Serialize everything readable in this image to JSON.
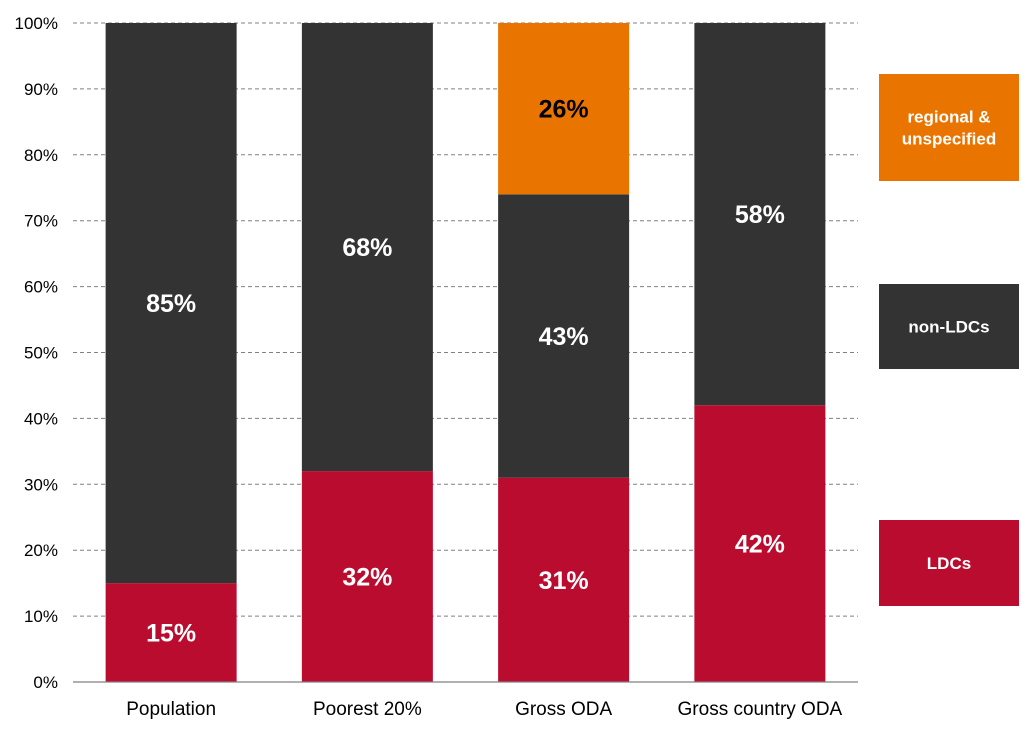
{
  "chart_data": {
    "type": "bar",
    "stacked": true,
    "categories": [
      "Population",
      "Poorest 20%",
      "Gross ODA",
      "Gross country ODA"
    ],
    "series": [
      {
        "name": "LDCs",
        "color": "#ba0c2f",
        "values": [
          15,
          32,
          31,
          42
        ],
        "labels": [
          "15%",
          "32%",
          "31%",
          "42%"
        ],
        "label_color": "#ffffff"
      },
      {
        "name": "non-LDCs",
        "color": "#333333",
        "values": [
          85,
          68,
          43,
          58
        ],
        "labels": [
          "85%",
          "68%",
          "43%",
          "58%"
        ],
        "label_color": "#ffffff"
      },
      {
        "name": "regional & unspecified",
        "color": "#ea7400",
        "values": [
          0,
          0,
          26,
          0
        ],
        "labels": [
          "",
          "",
          "26%",
          ""
        ],
        "label_color": "#000000"
      }
    ],
    "yticks": [
      "0%",
      "10%",
      "20%",
      "30%",
      "40%",
      "50%",
      "60%",
      "70%",
      "80%",
      "90%",
      "100%"
    ],
    "ylim": [
      0,
      100
    ],
    "grid": true,
    "legend": {
      "position": "right",
      "entries": [
        {
          "lines": [
            "regional &",
            "unspecified"
          ],
          "color": "#ea7400"
        },
        {
          "lines": [
            "non-LDCs"
          ],
          "color": "#333333"
        },
        {
          "lines": [
            "LDCs"
          ],
          "color": "#ba0c2f"
        }
      ]
    }
  }
}
